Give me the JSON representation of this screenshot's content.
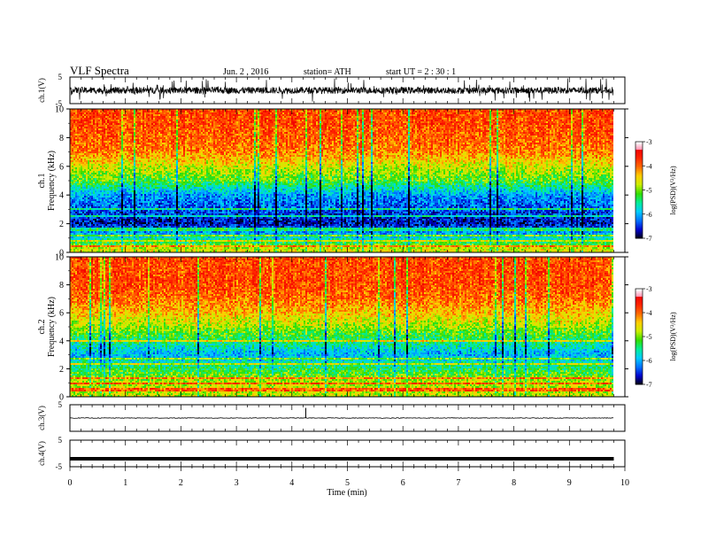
{
  "header": {
    "title": "VLF  Spectra",
    "date": "Jun. 2  , 2016",
    "station": "station= ATH",
    "start": "start  UT  =   2  : 30 : 1"
  },
  "time_axis": {
    "xlabel": "Time  (min)",
    "xlim": [
      0,
      10
    ],
    "ticks": [
      0,
      1,
      2,
      3,
      4,
      5,
      6,
      7,
      8,
      9,
      10
    ],
    "data_end_min": 9.8
  },
  "colorbar": {
    "label": "log(PSD)(V²/Hz)",
    "ticks": [
      "-3",
      "-4",
      "-5",
      "-6",
      "-7"
    ],
    "range": [
      -7,
      -3
    ],
    "colors": [
      "#000000",
      "#0000cc",
      "#0070ff",
      "#00ccff",
      "#00ee99",
      "#33dd00",
      "#ccee00",
      "#ffcc00",
      "#ff6600",
      "#ff2200",
      "#ee0000",
      "#ff88aa",
      "#ffffff"
    ]
  },
  "colors": {
    "waveform": "#000000",
    "axes": "#000000",
    "spectrogram_low": "#0000cc",
    "spectrogram_mid": "#00cc44",
    "spectrogram_high": "#ff2200"
  },
  "chart_data": [
    {
      "type": "line",
      "id": "ch1-waveform",
      "ylabel": "ch.1(V)",
      "ylim": [
        -5,
        5
      ],
      "yticks": [
        "5",
        "-5"
      ],
      "description_values": {
        "mean": 0,
        "amplitude_approx": 2.5
      },
      "x_range": [
        0,
        9.8
      ]
    },
    {
      "type": "heatmap",
      "id": "ch1-spectrogram",
      "ylabel": "ch.1\nFrequency  (kHz)",
      "ylabel_lines": [
        "ch.1",
        "Frequency  (kHz)"
      ],
      "ylim": [
        0,
        10
      ],
      "yticks": [
        "0",
        "2",
        "4",
        "6",
        "8",
        "10"
      ],
      "x_range": [
        0,
        9.8
      ],
      "profile_logpsd_by_freq_khz": [
        {
          "f": 0.2,
          "v": -4.5
        },
        {
          "f": 1.0,
          "v": -5.6
        },
        {
          "f": 2.0,
          "v": -6.6
        },
        {
          "f": 3.0,
          "v": -6.3
        },
        {
          "f": 4.0,
          "v": -6.0
        },
        {
          "f": 5.0,
          "v": -5.0
        },
        {
          "f": 6.0,
          "v": -4.5
        },
        {
          "f": 7.0,
          "v": -3.9
        },
        {
          "f": 8.0,
          "v": -3.7
        },
        {
          "f": 9.0,
          "v": -3.6
        },
        {
          "f": 10.0,
          "v": -3.6
        }
      ],
      "tonal_lines_khz": [
        0.4,
        0.8,
        1.2,
        1.6,
        2.5,
        3.0
      ]
    },
    {
      "type": "heatmap",
      "id": "ch2-spectrogram",
      "ylabel": "ch.2\nFrequency  (kHz)",
      "ylabel_lines": [
        "ch.2",
        "Frequency  (kHz)"
      ],
      "ylim": [
        0,
        10
      ],
      "yticks": [
        "0",
        "2",
        "4",
        "6",
        "8",
        "10"
      ],
      "x_range": [
        0,
        9.8
      ],
      "profile_logpsd_by_freq_khz": [
        {
          "f": 0.2,
          "v": -4.6
        },
        {
          "f": 1.0,
          "v": -4.6
        },
        {
          "f": 2.0,
          "v": -5.2
        },
        {
          "f": 3.0,
          "v": -5.9
        },
        {
          "f": 4.0,
          "v": -5.3
        },
        {
          "f": 5.0,
          "v": -4.7
        },
        {
          "f": 6.0,
          "v": -4.2
        },
        {
          "f": 7.0,
          "v": -3.8
        },
        {
          "f": 8.0,
          "v": -3.6
        },
        {
          "f": 9.0,
          "v": -3.6
        },
        {
          "f": 10.0,
          "v": -3.6
        }
      ],
      "tonal_lines_khz": [
        0.5,
        0.9,
        1.3,
        2.3,
        2.7,
        4.0
      ]
    },
    {
      "type": "line",
      "id": "ch3-waveform",
      "ylabel": "ch.3(V)",
      "ylim": [
        -5,
        5
      ],
      "yticks": [
        "5",
        "-5"
      ],
      "baseline": 0,
      "spike_min": 4.25,
      "x_range": [
        0,
        9.8
      ]
    },
    {
      "type": "line",
      "id": "ch4-waveform",
      "ylabel": "ch.4(V)",
      "ylim": [
        -5,
        5
      ],
      "yticks": [
        "5",
        "-5"
      ],
      "baseline": -2,
      "x_range": [
        0,
        9.8
      ]
    }
  ]
}
